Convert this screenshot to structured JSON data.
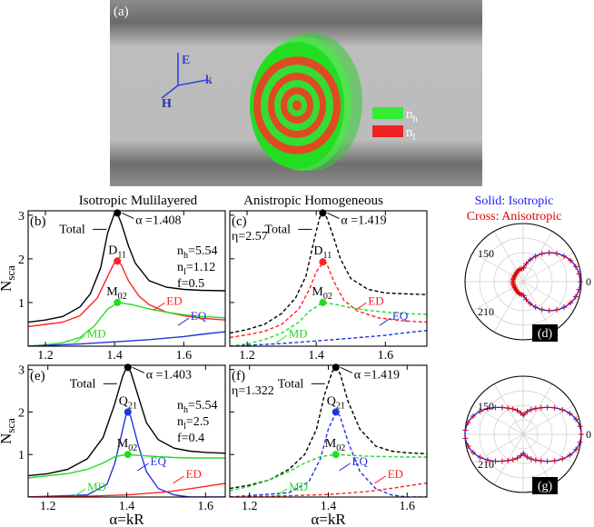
{
  "panel_a": {
    "label": "(a)",
    "axis_labels": {
      "E": "E",
      "H": "H",
      "k": "k"
    },
    "legend": [
      {
        "base": "n",
        "sub": "h",
        "color": "#33ee33"
      },
      {
        "base": "n",
        "sub": "l",
        "color": "#ee2222"
      }
    ]
  },
  "column_titles": {
    "left": "Isotropic Mulilayered",
    "middle": "Anistropic Homogeneous",
    "right_line1": "Solid: Isotropic",
    "right_line2": "Cross: Anisotropic"
  },
  "colors": {
    "total": "#000000",
    "ed": "#ff2222",
    "md": "#22dd22",
    "eq": "#2233dd",
    "solid_legend": "#1a1aff",
    "cross_legend": "#dd0000"
  },
  "chart_data": [
    {
      "id": "b",
      "type": "line",
      "label": "(b)",
      "style": "solid",
      "xlim": [
        1.15,
        1.72
      ],
      "ylim": [
        0,
        3.1
      ],
      "xticks": [
        1.2,
        1.4,
        1.6
      ],
      "yticks": [
        1,
        2,
        3
      ],
      "ylabel": {
        "base": "N",
        "sub": "sca"
      },
      "params": [
        {
          "base": "n",
          "sub": "h",
          "val": "=5.54"
        },
        {
          "base": "n",
          "sub": "l",
          "val": "=1.12"
        },
        {
          "base": "f",
          "sub": "",
          "val": "=0.5"
        }
      ],
      "peak_annotation": "α =1.408",
      "total_label": "Total",
      "multipole_labels": [
        {
          "base": "D",
          "sub": "11"
        },
        {
          "base": "M",
          "sub": "02"
        }
      ],
      "curve_labels": {
        "ed": "ED",
        "md": "MD",
        "eq": "EQ"
      },
      "series": [
        {
          "name": "Total",
          "key": "total",
          "x": [
            1.15,
            1.2,
            1.25,
            1.3,
            1.33,
            1.36,
            1.38,
            1.4,
            1.41,
            1.42,
            1.44,
            1.46,
            1.5,
            1.55,
            1.6,
            1.65,
            1.72
          ],
          "y": [
            0.55,
            0.6,
            0.68,
            0.9,
            1.2,
            1.8,
            2.6,
            3.05,
            3.0,
            2.8,
            2.3,
            1.9,
            1.5,
            1.35,
            1.3,
            1.28,
            1.27
          ]
        },
        {
          "name": "ED",
          "key": "ed",
          "x": [
            1.15,
            1.2,
            1.25,
            1.3,
            1.35,
            1.38,
            1.4,
            1.41,
            1.42,
            1.44,
            1.47,
            1.5,
            1.55,
            1.6,
            1.65,
            1.72
          ],
          "y": [
            0.45,
            0.5,
            0.55,
            0.7,
            1.1,
            1.6,
            1.92,
            1.95,
            1.85,
            1.5,
            1.15,
            0.95,
            0.78,
            0.7,
            0.64,
            0.6
          ]
        },
        {
          "name": "MD",
          "key": "md",
          "x": [
            1.15,
            1.2,
            1.25,
            1.3,
            1.34,
            1.38,
            1.41,
            1.45,
            1.5,
            1.55,
            1.6,
            1.65,
            1.72
          ],
          "y": [
            0.0,
            0.03,
            0.08,
            0.2,
            0.45,
            0.85,
            1.0,
            0.95,
            0.85,
            0.78,
            0.72,
            0.68,
            0.65
          ]
        },
        {
          "name": "EQ",
          "key": "eq",
          "x": [
            1.15,
            1.3,
            1.4,
            1.5,
            1.6,
            1.65,
            1.72
          ],
          "y": [
            0.0,
            0.05,
            0.1,
            0.15,
            0.22,
            0.27,
            0.33
          ]
        }
      ],
      "markers": [
        {
          "x": 1.408,
          "y": 3.05,
          "color": "#000000"
        },
        {
          "x": 1.408,
          "y": 1.95,
          "color": "#ff2222"
        },
        {
          "x": 1.408,
          "y": 1.0,
          "color": "#22dd22"
        }
      ]
    },
    {
      "id": "c",
      "type": "line",
      "label": "(c)",
      "style": "dashed",
      "xlim": [
        1.15,
        1.72
      ],
      "ylim": [
        0,
        3.1
      ],
      "xticks": [
        1.2,
        1.4,
        1.6
      ],
      "yticks": [],
      "eta": "η=2.57",
      "peak_annotation": "α =1.419",
      "total_label": "Total",
      "multipole_labels": [
        {
          "base": "D",
          "sub": "11"
        },
        {
          "base": "M",
          "sub": "02"
        }
      ],
      "curve_labels": {
        "ed": "ED",
        "md": "MD",
        "eq": "EQ"
      },
      "series": [
        {
          "name": "Total",
          "key": "total",
          "x": [
            1.15,
            1.2,
            1.25,
            1.3,
            1.34,
            1.37,
            1.39,
            1.41,
            1.42,
            1.43,
            1.45,
            1.47,
            1.5,
            1.55,
            1.6,
            1.65,
            1.72
          ],
          "y": [
            0.3,
            0.38,
            0.5,
            0.75,
            1.1,
            1.6,
            2.3,
            2.95,
            3.05,
            2.95,
            2.5,
            2.0,
            1.55,
            1.3,
            1.22,
            1.2,
            1.18
          ]
        },
        {
          "name": "ED",
          "key": "ed",
          "x": [
            1.15,
            1.2,
            1.25,
            1.3,
            1.35,
            1.38,
            1.4,
            1.42,
            1.43,
            1.45,
            1.48,
            1.52,
            1.58,
            1.65,
            1.72
          ],
          "y": [
            0.2,
            0.26,
            0.34,
            0.5,
            0.85,
            1.3,
            1.7,
            1.92,
            1.9,
            1.5,
            1.05,
            0.8,
            0.65,
            0.58,
            0.55
          ]
        },
        {
          "name": "MD",
          "key": "md",
          "x": [
            1.15,
            1.2,
            1.25,
            1.3,
            1.35,
            1.38,
            1.42,
            1.46,
            1.5,
            1.55,
            1.6,
            1.65,
            1.72
          ],
          "y": [
            0.0,
            0.05,
            0.15,
            0.3,
            0.55,
            0.8,
            1.0,
            0.95,
            0.88,
            0.82,
            0.78,
            0.75,
            0.73
          ]
        },
        {
          "name": "EQ",
          "key": "eq",
          "x": [
            1.15,
            1.3,
            1.4,
            1.5,
            1.6,
            1.65,
            1.72
          ],
          "y": [
            0.0,
            0.06,
            0.12,
            0.18,
            0.25,
            0.3,
            0.36
          ]
        }
      ],
      "markers": [
        {
          "x": 1.419,
          "y": 3.05,
          "color": "#000000"
        },
        {
          "x": 1.419,
          "y": 1.93,
          "color": "#ff2222"
        },
        {
          "x": 1.419,
          "y": 1.0,
          "color": "#22dd22"
        }
      ]
    },
    {
      "id": "e",
      "type": "line",
      "label": "(e)",
      "style": "solid",
      "xlim": [
        1.15,
        1.65
      ],
      "ylim": [
        0,
        3.1
      ],
      "xticks": [
        1.2,
        1.4,
        1.6
      ],
      "yticks": [
        1,
        2,
        3
      ],
      "xlabel": "α=kR",
      "ylabel": {
        "base": "N",
        "sub": "sca"
      },
      "params": [
        {
          "base": "n",
          "sub": "h",
          "val": "=5.54"
        },
        {
          "base": "n",
          "sub": "l",
          "val": "=2.5"
        },
        {
          "base": "f",
          "sub": "",
          "val": "=0.4"
        }
      ],
      "peak_annotation": "α =1.403",
      "total_label": "Total",
      "multipole_labels": [
        {
          "base": "Q",
          "sub": "21"
        },
        {
          "base": "M",
          "sub": "02"
        }
      ],
      "curve_labels": {
        "ed": "ED",
        "md": "MD",
        "eq": "EQ"
      },
      "series": [
        {
          "name": "Total",
          "key": "total",
          "x": [
            1.15,
            1.2,
            1.25,
            1.3,
            1.34,
            1.37,
            1.39,
            1.4,
            1.41,
            1.43,
            1.45,
            1.48,
            1.52,
            1.56,
            1.6,
            1.65
          ],
          "y": [
            0.5,
            0.55,
            0.65,
            0.9,
            1.4,
            2.2,
            2.85,
            3.05,
            2.95,
            2.35,
            1.75,
            1.35,
            1.15,
            1.08,
            1.05,
            1.03
          ]
        },
        {
          "name": "EQ",
          "key": "eq",
          "x": [
            1.15,
            1.3,
            1.35,
            1.37,
            1.39,
            1.4,
            1.41,
            1.43,
            1.45,
            1.48,
            1.52,
            1.56,
            1.6,
            1.65
          ],
          "y": [
            0.0,
            0.05,
            0.3,
            0.8,
            1.6,
            2.0,
            1.9,
            1.2,
            0.6,
            0.2,
            0.05,
            0.0,
            0.0,
            0.0
          ]
        },
        {
          "name": "MD",
          "key": "md",
          "x": [
            1.15,
            1.2,
            1.25,
            1.3,
            1.34,
            1.37,
            1.4,
            1.43,
            1.48,
            1.52,
            1.56,
            1.6,
            1.65
          ],
          "y": [
            0.45,
            0.5,
            0.55,
            0.65,
            0.8,
            0.95,
            1.0,
            0.98,
            0.95,
            0.93,
            0.92,
            0.92,
            0.92
          ]
        },
        {
          "name": "ED",
          "key": "ed",
          "x": [
            1.15,
            1.3,
            1.4,
            1.5,
            1.55,
            1.6,
            1.65
          ],
          "y": [
            0.0,
            0.02,
            0.05,
            0.12,
            0.18,
            0.25,
            0.32
          ]
        }
      ],
      "markers": [
        {
          "x": 1.403,
          "y": 3.05,
          "color": "#000000"
        },
        {
          "x": 1.403,
          "y": 2.0,
          "color": "#2233dd"
        },
        {
          "x": 1.403,
          "y": 1.0,
          "color": "#22dd22"
        }
      ]
    },
    {
      "id": "f",
      "type": "line",
      "label": "(f)",
      "style": "dashed",
      "xlim": [
        1.15,
        1.65
      ],
      "ylim": [
        0,
        3.1
      ],
      "xticks": [
        1.2,
        1.4,
        1.6
      ],
      "yticks": [],
      "xlabel": "α=kR",
      "eta": "η=1.322",
      "peak_annotation": "α =1.419",
      "total_label": "Total",
      "multipole_labels": [
        {
          "base": "Q",
          "sub": "21"
        },
        {
          "base": "M",
          "sub": "02"
        }
      ],
      "curve_labels": {
        "ed": "ED",
        "md": "MD",
        "eq": "EQ"
      },
      "series": [
        {
          "name": "Total",
          "key": "total",
          "x": [
            1.15,
            1.2,
            1.25,
            1.3,
            1.34,
            1.37,
            1.39,
            1.41,
            1.42,
            1.43,
            1.45,
            1.48,
            1.52,
            1.56,
            1.6,
            1.65
          ],
          "y": [
            0.2,
            0.28,
            0.4,
            0.65,
            1.0,
            1.6,
            2.4,
            2.95,
            3.05,
            2.9,
            2.25,
            1.6,
            1.2,
            1.08,
            1.04,
            1.02
          ]
        },
        {
          "name": "EQ",
          "key": "eq",
          "x": [
            1.15,
            1.3,
            1.35,
            1.38,
            1.4,
            1.42,
            1.43,
            1.45,
            1.48,
            1.52,
            1.56,
            1.6,
            1.65
          ],
          "y": [
            0.0,
            0.1,
            0.35,
            0.9,
            1.6,
            2.0,
            1.9,
            1.3,
            0.6,
            0.2,
            0.05,
            0.0,
            0.0
          ]
        },
        {
          "name": "MD",
          "key": "md",
          "x": [
            1.15,
            1.2,
            1.25,
            1.3,
            1.34,
            1.38,
            1.42,
            1.46,
            1.5,
            1.55,
            1.6,
            1.65
          ],
          "y": [
            0.15,
            0.25,
            0.4,
            0.6,
            0.8,
            0.95,
            1.0,
            0.98,
            0.96,
            0.95,
            0.94,
            0.94
          ]
        },
        {
          "name": "ED",
          "key": "ed",
          "x": [
            1.15,
            1.3,
            1.4,
            1.5,
            1.55,
            1.6,
            1.65
          ],
          "y": [
            0.0,
            0.03,
            0.06,
            0.13,
            0.19,
            0.26,
            0.33
          ]
        }
      ],
      "markers": [
        {
          "x": 1.419,
          "y": 3.05,
          "color": "#000000"
        },
        {
          "x": 1.419,
          "y": 2.0,
          "color": "#2233dd"
        },
        {
          "x": 1.419,
          "y": 1.0,
          "color": "#22dd22"
        }
      ]
    },
    {
      "id": "d",
      "type": "polar",
      "label": "(d)",
      "angle_labels": [
        "150",
        "0",
        "210"
      ],
      "pattern": "forward-lobe"
    },
    {
      "id": "g",
      "type": "polar",
      "label": "(g)",
      "angle_labels": [
        "150",
        "0",
        "210"
      ],
      "pattern": "quadrupole-lobes"
    }
  ]
}
